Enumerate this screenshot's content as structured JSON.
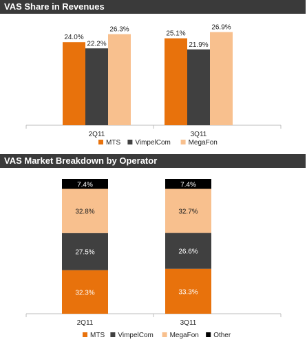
{
  "colors": {
    "mts": "#e8720c",
    "vimpelcom": "#404040",
    "megafon": "#f8c08e",
    "other": "#000000",
    "header_bg": "#3a3a3a"
  },
  "chart_data": [
    {
      "type": "bar",
      "title": "VAS Share in Revenues",
      "categories": [
        "2Q11",
        "3Q11"
      ],
      "series": [
        {
          "name": "MTS",
          "values": [
            24.0,
            25.1
          ],
          "labels": [
            "24.0%",
            "25.1%"
          ],
          "color": "#e8720c"
        },
        {
          "name": "VimpelCom",
          "values": [
            22.2,
            21.9
          ],
          "labels": [
            "22.2%",
            "21.9%"
          ],
          "color": "#404040"
        },
        {
          "name": "MegaFon",
          "values": [
            26.3,
            26.9
          ],
          "labels": [
            "26.3%",
            "26.9%"
          ],
          "color": "#f8c08e"
        }
      ],
      "ylim": [
        0,
        31
      ],
      "grid": false,
      "legend": "bottom"
    },
    {
      "type": "stacked-bar",
      "title": "VAS Market Breakdown by Operator",
      "categories": [
        "2Q11",
        "3Q11"
      ],
      "series": [
        {
          "name": "MTS",
          "values": [
            32.3,
            33.3
          ],
          "labels": [
            "32.3%",
            "33.3%"
          ],
          "color": "#e8720c"
        },
        {
          "name": "VimpelCom",
          "values": [
            27.5,
            26.6
          ],
          "labels": [
            "27.5%",
            "26.6%"
          ],
          "color": "#404040"
        },
        {
          "name": "MegaFon",
          "values": [
            32.8,
            32.7
          ],
          "labels": [
            "32.8%",
            "32.7%"
          ],
          "color": "#f8c08e"
        },
        {
          "name": "Other",
          "values": [
            7.4,
            7.4
          ],
          "labels": [
            "7.4%",
            "7.4%"
          ],
          "color": "#000000"
        }
      ],
      "ylim": [
        0,
        100
      ],
      "grid": false,
      "legend": "bottom"
    }
  ]
}
